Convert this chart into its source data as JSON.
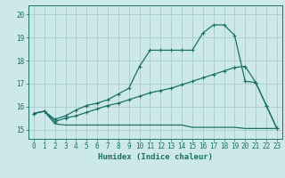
{
  "xlabel": "Humidex (Indice chaleur)",
  "bg_color": "#cce8e8",
  "grid_color": "#aacccc",
  "line_color": "#1a7068",
  "xlim": [
    -0.5,
    23.5
  ],
  "ylim": [
    14.6,
    20.4
  ],
  "xticks": [
    0,
    1,
    2,
    3,
    4,
    5,
    6,
    7,
    8,
    9,
    10,
    11,
    12,
    13,
    14,
    15,
    16,
    17,
    18,
    19,
    20,
    21,
    22,
    23
  ],
  "yticks": [
    15,
    16,
    17,
    18,
    19,
    20
  ],
  "line1_x": [
    0,
    1,
    2,
    3,
    4,
    5,
    6,
    7,
    8,
    9,
    10,
    11,
    12,
    13,
    14,
    15,
    16,
    17,
    18,
    19,
    20,
    21,
    22,
    23
  ],
  "line1_y": [
    15.7,
    15.8,
    15.25,
    15.2,
    15.2,
    15.2,
    15.2,
    15.2,
    15.2,
    15.2,
    15.2,
    15.2,
    15.2,
    15.2,
    15.2,
    15.1,
    15.1,
    15.1,
    15.1,
    15.1,
    15.05,
    15.05,
    15.05,
    15.05
  ],
  "line2_x": [
    0,
    1,
    2,
    3,
    4,
    5,
    6,
    7,
    8,
    9,
    10,
    11,
    12,
    13,
    14,
    15,
    16,
    17,
    18,
    19,
    20,
    21,
    22,
    23
  ],
  "line2_y": [
    15.7,
    15.8,
    15.35,
    15.5,
    15.6,
    15.75,
    15.9,
    16.05,
    16.15,
    16.3,
    16.45,
    16.6,
    16.7,
    16.8,
    16.95,
    17.1,
    17.25,
    17.4,
    17.55,
    17.7,
    17.75,
    17.05,
    16.05,
    15.05
  ],
  "line3_x": [
    0,
    1,
    2,
    3,
    4,
    5,
    6,
    7,
    8,
    9,
    10,
    11,
    12,
    13,
    14,
    15,
    16,
    17,
    18,
    19,
    20,
    21,
    22,
    23
  ],
  "line3_y": [
    15.7,
    15.8,
    15.45,
    15.6,
    15.85,
    16.05,
    16.15,
    16.3,
    16.55,
    16.8,
    17.75,
    18.45,
    18.45,
    18.45,
    18.45,
    18.45,
    19.2,
    19.55,
    19.55,
    19.1,
    17.1,
    17.05,
    16.05,
    15.05
  ]
}
